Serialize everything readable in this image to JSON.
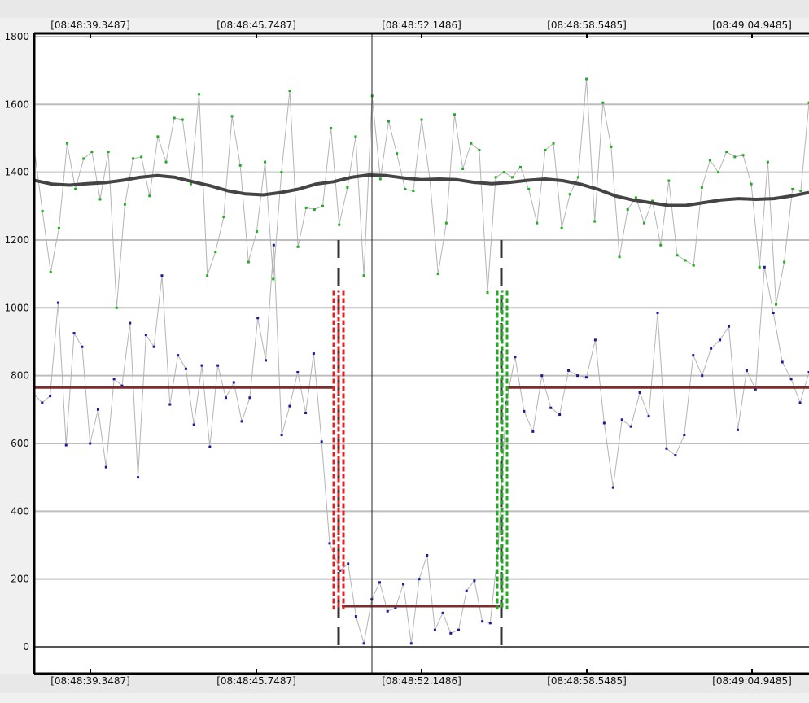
{
  "chart_data": {
    "type": "line",
    "title": "",
    "xlabel": "",
    "ylabel": "",
    "ylim": [
      0,
      1800
    ],
    "y_ticks": [
      0,
      200,
      400,
      600,
      800,
      1000,
      1200,
      1400,
      1600,
      1800
    ],
    "y_tick_labels": [
      "0",
      "200",
      "400",
      "600",
      "800",
      "1000",
      "1200",
      "1400",
      "1600",
      "1800"
    ],
    "x_tick_labels": [
      "[08:48:39.3487]",
      "[08:48:45.7487]",
      "[08:48:52.1486]",
      "[08:48:58.5485]",
      "[08:49:04.9485]"
    ],
    "grid": true,
    "cursor_time": "08:48:50.6",
    "series": [
      {
        "role": "upper-raw",
        "color": "#b4b4b4",
        "marker_color": "#22aa22",
        "values": [
          1470,
          1285,
          1105,
          1235,
          1485,
          1350,
          1440,
          1460,
          1320,
          1460,
          1000,
          1305,
          1440,
          1445,
          1330,
          1505,
          1430,
          1560,
          1555,
          1365,
          1630,
          1095,
          1165,
          1268,
          1565,
          1420,
          1135,
          1225,
          1430,
          1085,
          1400,
          1640,
          1180,
          1295,
          1290,
          1300,
          1530,
          1245,
          1355,
          1505,
          1095,
          1625,
          1380,
          1550,
          1455,
          1350,
          1345,
          1555,
          1380,
          1100,
          1250,
          1570,
          1410,
          1485,
          1465,
          1045,
          1385,
          1400,
          1385,
          1415,
          1350,
          1250,
          1465,
          1485,
          1235,
          1335,
          1385,
          1675,
          1255,
          1605,
          1475,
          1150,
          1290,
          1325,
          1250,
          1315,
          1185,
          1375,
          1155,
          1140,
          1125,
          1355,
          1435,
          1400,
          1460,
          1445,
          1450,
          1365,
          1120,
          1430,
          1010,
          1135,
          1350,
          1345,
          1605
        ]
      },
      {
        "role": "upper-smoothed",
        "color": "#444444",
        "values": [
          1376,
          1365,
          1362,
          1366,
          1369,
          1376,
          1385,
          1390,
          1385,
          1372,
          1360,
          1345,
          1336,
          1333,
          1340,
          1350,
          1365,
          1372,
          1385,
          1392,
          1390,
          1383,
          1378,
          1380,
          1378,
          1370,
          1366,
          1370,
          1376,
          1380,
          1375,
          1365,
          1350,
          1330,
          1318,
          1310,
          1302,
          1302,
          1310,
          1318,
          1322,
          1320,
          1322,
          1330,
          1340
        ]
      },
      {
        "role": "lower-raw",
        "color": "#b4b4b4",
        "marker_color": "#1a1a99",
        "segments": [
          {
            "values": [
              745,
              720,
              740,
              1015,
              595,
              925,
              885,
              600,
              700,
              530,
              790,
              770,
              955,
              500,
              920,
              885,
              1095,
              715,
              860,
              820,
              655,
              830,
              590,
              830,
              735,
              780,
              665,
              735,
              970,
              845,
              1185,
              625,
              710,
              810,
              690,
              865,
              605,
              305
            ]
          },
          {
            "values": [
              225,
              245,
              90,
              10,
              140,
              190,
              105,
              115,
              185,
              10,
              200,
              270,
              50,
              100,
              40,
              50,
              165,
              195,
              75,
              70,
              290
            ]
          },
          {
            "values": [
              720,
              855,
              695,
              635,
              800,
              705,
              685,
              815,
              800,
              795,
              905,
              660,
              470,
              670,
              650,
              750,
              680,
              985,
              585,
              565,
              625,
              860,
              800,
              880,
              905,
              945,
              640,
              815,
              760,
              1120,
              985,
              840,
              790,
              720,
              810
            ]
          }
        ]
      },
      {
        "role": "lower-mean",
        "color": "#7a2e2e",
        "segments": [
          {
            "value": 765
          },
          {
            "value": 120
          },
          {
            "value": 765
          }
        ]
      }
    ],
    "markers": [
      {
        "role": "segment-start",
        "color": "#e02020",
        "y_range": [
          110,
          1050
        ]
      },
      {
        "role": "segment-end",
        "color": "#22aa22",
        "y_range": [
          110,
          1050
        ]
      }
    ]
  }
}
